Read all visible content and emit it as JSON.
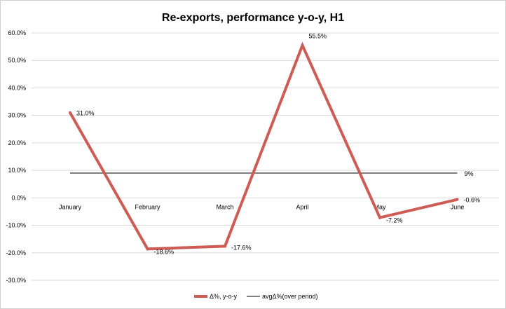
{
  "chart_data": {
    "type": "line",
    "title": "Re-exports, performance y-o-y, H1",
    "categories": [
      "January",
      "February",
      "March",
      "April",
      "May",
      "June"
    ],
    "y_ticks": [
      "60.0%",
      "50.0%",
      "40.0%",
      "30.0%",
      "20.0%",
      "10.0%",
      "0.0%",
      "-10.0%",
      "-20.0%",
      "-30.0%"
    ],
    "ylim": [
      -30,
      60
    ],
    "grid": true,
    "legend_position": "bottom",
    "series": [
      {
        "name": "Δ%, y-o-y",
        "color": "#cd5c55",
        "values": [
          31.0,
          -18.6,
          -17.6,
          55.5,
          -7.2,
          -0.6
        ],
        "labels": [
          "31.0%",
          "-18.6%",
          "-17.6%",
          "55.5%",
          "-7.2%",
          "-0.6%"
        ]
      },
      {
        "name": "avgΔ%(over period)",
        "color": "#000000",
        "values": [
          9,
          9,
          9,
          9,
          9,
          9
        ],
        "end_label": "9%"
      }
    ]
  }
}
